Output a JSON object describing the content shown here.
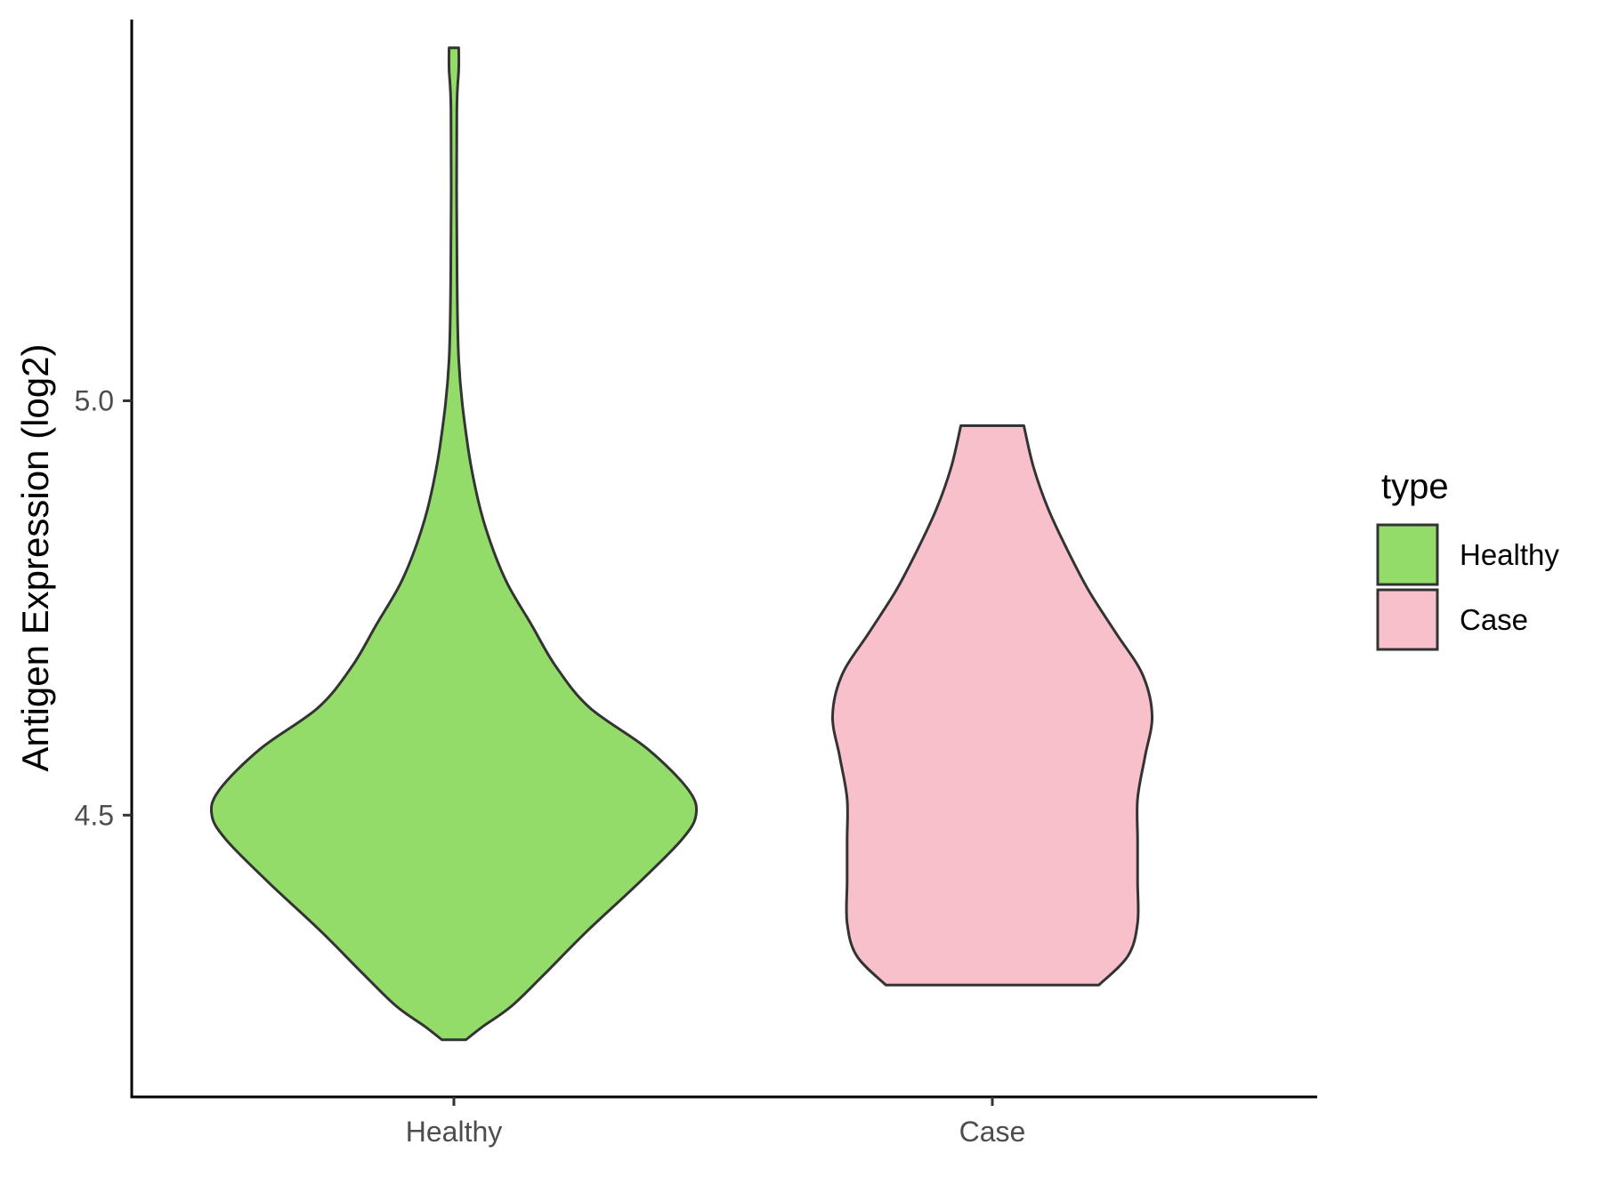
{
  "chart_data": {
    "type": "violin",
    "xlabel": "",
    "ylabel": "Antigen Expression (log2)",
    "categories": [
      "Healthy",
      "Case"
    ],
    "ylim": [
      4.16,
      5.46
    ],
    "yticks": [
      4.5,
      5.0
    ],
    "ytick_labels": [
      "4.5",
      "5.0"
    ],
    "grid": false,
    "legend": {
      "title": "type",
      "position": "right",
      "entries": [
        {
          "label": "Healthy",
          "color": "#93dc6a"
        },
        {
          "label": "Case",
          "color": "#f8c0cb"
        }
      ]
    },
    "series": [
      {
        "name": "Healthy",
        "color": "#93dc6a",
        "profile": [
          {
            "y": 4.229,
            "w": 0.05
          },
          {
            "y": 4.245,
            "w": 0.12
          },
          {
            "y": 4.27,
            "w": 0.24
          },
          {
            "y": 4.31,
            "w": 0.38
          },
          {
            "y": 4.36,
            "w": 0.55
          },
          {
            "y": 4.42,
            "w": 0.77
          },
          {
            "y": 4.47,
            "w": 0.94
          },
          {
            "y": 4.5,
            "w": 1.0
          },
          {
            "y": 4.53,
            "w": 0.97
          },
          {
            "y": 4.58,
            "w": 0.8
          },
          {
            "y": 4.63,
            "w": 0.56
          },
          {
            "y": 4.68,
            "w": 0.42
          },
          {
            "y": 4.73,
            "w": 0.32
          },
          {
            "y": 4.78,
            "w": 0.22
          },
          {
            "y": 4.83,
            "w": 0.15
          },
          {
            "y": 4.88,
            "w": 0.1
          },
          {
            "y": 4.95,
            "w": 0.055
          },
          {
            "y": 5.05,
            "w": 0.02
          },
          {
            "y": 5.2,
            "w": 0.012
          },
          {
            "y": 5.35,
            "w": 0.012
          },
          {
            "y": 5.4,
            "w": 0.02
          },
          {
            "y": 5.426,
            "w": 0.02
          }
        ]
      },
      {
        "name": "Case",
        "color": "#f8c0cb",
        "profile": [
          {
            "y": 4.295,
            "w": 0.44
          },
          {
            "y": 4.33,
            "w": 0.56
          },
          {
            "y": 4.37,
            "w": 0.6
          },
          {
            "y": 4.42,
            "w": 0.6
          },
          {
            "y": 4.47,
            "w": 0.6
          },
          {
            "y": 4.52,
            "w": 0.6
          },
          {
            "y": 4.57,
            "w": 0.63
          },
          {
            "y": 4.62,
            "w": 0.66
          },
          {
            "y": 4.67,
            "w": 0.62
          },
          {
            "y": 4.72,
            "w": 0.51
          },
          {
            "y": 4.77,
            "w": 0.4
          },
          {
            "y": 4.82,
            "w": 0.31
          },
          {
            "y": 4.87,
            "w": 0.23
          },
          {
            "y": 4.92,
            "w": 0.17
          },
          {
            "y": 4.97,
            "w": 0.13
          }
        ]
      }
    ]
  }
}
